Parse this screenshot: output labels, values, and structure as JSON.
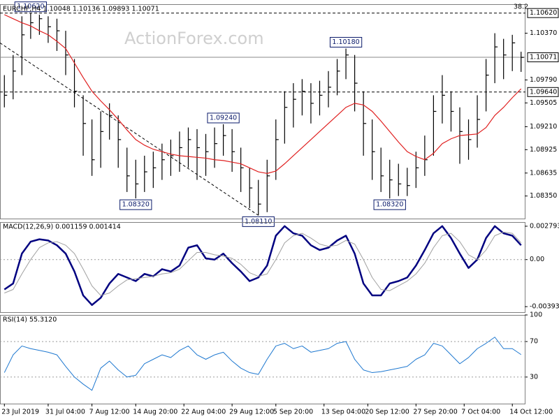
{
  "chart_data": [
    {
      "type": "ohlc",
      "title": "EURCHF,H4  1.10048 1.10136 1.09893 1.10071",
      "corner_label": "38.2",
      "watermark": "ActionForex.com",
      "color": "#000000",
      "xlim": [
        -0.5,
        59.5
      ],
      "ylim": [
        1.0807,
        1.1073
      ],
      "yticks": [
        {
          "value": 1.1037,
          "label": "1.10370"
        },
        {
          "value": 1.0979,
          "label": "1.09790"
        },
        {
          "value": 1.09505,
          "label": "1.09505"
        },
        {
          "value": 1.0921,
          "label": "1.09210"
        },
        {
          "value": 1.08925,
          "label": "1.08925"
        },
        {
          "value": 1.08635,
          "label": "1.08635"
        },
        {
          "value": 1.0835,
          "label": "1.08350"
        }
      ],
      "high": [
        1.0985,
        1.101,
        1.1058,
        1.1062,
        1.106,
        1.1058,
        1.1055,
        1.104,
        1.1005,
        1.096,
        1.093,
        1.094,
        1.095,
        1.0935,
        1.0895,
        1.088,
        1.0885,
        1.089,
        1.09,
        1.0905,
        1.0915,
        1.092,
        1.0918,
        1.0912,
        1.092,
        1.0924,
        1.0918,
        1.0895,
        1.087,
        1.0855,
        1.088,
        1.093,
        1.0965,
        1.0975,
        1.098,
        1.0975,
        1.0978,
        1.099,
        1.1005,
        1.1018,
        1.101,
        1.0965,
        1.093,
        1.0895,
        1.088,
        1.0875,
        1.087,
        1.089,
        1.091,
        1.096,
        1.0985,
        1.0965,
        1.0945,
        1.093,
        1.096,
        1.1005,
        1.1037,
        1.103,
        1.1035,
        1.1014
      ],
      "low": [
        1.0945,
        1.0955,
        1.0985,
        1.103,
        1.1035,
        1.1025,
        1.1015,
        1.0985,
        1.0945,
        1.0885,
        1.086,
        1.087,
        1.0905,
        1.087,
        1.084,
        1.0832,
        1.084,
        1.0845,
        1.0855,
        1.086,
        1.0865,
        1.087,
        1.0855,
        1.086,
        1.087,
        1.0885,
        1.0865,
        1.084,
        1.082,
        1.0811,
        1.0815,
        1.0855,
        1.09,
        1.092,
        1.0935,
        1.0925,
        1.0935,
        1.0945,
        1.096,
        1.098,
        1.094,
        1.0885,
        1.0855,
        1.084,
        1.0832,
        1.0835,
        1.0835,
        1.0845,
        1.086,
        1.0885,
        1.0925,
        1.0915,
        1.0875,
        1.088,
        1.0895,
        1.094,
        1.0975,
        1.098,
        1.099,
        1.0989
      ],
      "close": [
        1.096,
        1.099,
        1.1035,
        1.105,
        1.1055,
        1.1045,
        1.104,
        1.101,
        1.0965,
        1.0925,
        1.088,
        1.0915,
        1.0935,
        1.0905,
        1.086,
        1.085,
        1.0865,
        1.087,
        1.088,
        1.0885,
        1.0895,
        1.0905,
        1.0895,
        1.089,
        1.09,
        1.091,
        1.089,
        1.087,
        1.0845,
        1.0825,
        1.086,
        1.0905,
        1.0945,
        1.0955,
        1.0965,
        1.095,
        1.096,
        1.097,
        1.099,
        1.101,
        1.0975,
        1.0925,
        1.089,
        1.086,
        1.0855,
        1.085,
        1.0848,
        1.087,
        1.088,
        1.094,
        1.096,
        1.094,
        1.0915,
        1.0905,
        1.093,
        1.0985,
        1.102,
        1.101,
        1.1025,
        1.1007
      ],
      "ma": {
        "color": "#e02020",
        "values": [
          1.106,
          1.1055,
          1.105,
          1.1046,
          1.104,
          1.1035,
          1.1027,
          1.1018,
          1.1,
          1.0982,
          1.0965,
          1.0953,
          1.0942,
          1.093,
          1.0917,
          1.0905,
          1.0898,
          1.0893,
          1.089,
          1.0887,
          1.0885,
          1.0884,
          1.0883,
          1.0882,
          1.088,
          1.0879,
          1.0877,
          1.0875,
          1.087,
          1.0865,
          1.0863,
          1.0866,
          1.0875,
          1.0885,
          1.0895,
          1.0905,
          1.0915,
          1.0925,
          1.0935,
          1.0945,
          1.095,
          1.0948,
          1.094,
          1.0928,
          1.0915,
          1.0902,
          1.089,
          1.0884,
          1.088,
          1.0888,
          1.09,
          1.0906,
          1.091,
          1.0911,
          1.0912,
          1.092,
          1.0935,
          1.0945,
          1.0957,
          1.0968
        ]
      },
      "trendline": {
        "color": "#000000",
        "x": [
          -0.5,
          29
        ],
        "y": [
          1.1025,
          1.0811
        ]
      },
      "levels": [
        {
          "value": 1.1062,
          "label": "1.10620",
          "style": "dashed"
        },
        {
          "value": 1.10071,
          "label": "1.10071",
          "style": "solid"
        },
        {
          "value": 1.0964,
          "label": "1.09640",
          "style": "dashed"
        }
      ],
      "annotations": [
        {
          "x": 3,
          "value": 1.1062,
          "label": "1.10620"
        },
        {
          "x": 15,
          "value": 1.0832,
          "label": "1.08320"
        },
        {
          "x": 25,
          "value": 1.0924,
          "label": "1.09240"
        },
        {
          "x": 29,
          "value": 1.0811,
          "label": "1.08110"
        },
        {
          "x": 39,
          "value": 1.1018,
          "label": "1.10180"
        },
        {
          "x": 44,
          "value": 1.0832,
          "label": "1.08320"
        }
      ]
    },
    {
      "type": "line",
      "title": "MACD(12,26,9) 0.001159 0.001414",
      "xlim": [
        -0.5,
        59.5
      ],
      "ylim": [
        -0.0044,
        0.00314
      ],
      "yticks": [
        0.002793,
        {
          "value": 0,
          "label": "0.00"
        },
        -0.003938
      ],
      "grid_levels": [
        0
      ],
      "series": [
        {
          "color": "#000080",
          "width": 2.5,
          "values": [
            -0.0025,
            -0.002,
            0.0005,
            0.0015,
            0.0017,
            0.0016,
            0.0012,
            0.0005,
            -0.001,
            -0.003,
            -0.0038,
            -0.0032,
            -0.002,
            -0.0012,
            -0.0015,
            -0.0018,
            -0.0012,
            -0.0014,
            -0.0008,
            -0.001,
            -0.0005,
            0.001,
            0.0012,
            0.0001,
            0.0,
            0.0005,
            -0.0003,
            -0.001,
            -0.0018,
            -0.0015,
            -0.0005,
            0.002,
            0.0028,
            0.0022,
            0.002,
            0.0012,
            0.0008,
            0.001,
            0.0016,
            0.002,
            0.0005,
            -0.002,
            -0.003,
            -0.003,
            -0.002,
            -0.0018,
            -0.0015,
            -0.0005,
            0.0008,
            0.0022,
            0.0028,
            0.0018,
            0.0005,
            -0.0007,
            0.0,
            0.0018,
            0.0028,
            0.0022,
            0.002,
            0.0012
          ]
        },
        {
          "color": "#a0a0a0",
          "width": 1,
          "values": [
            -0.0028,
            -0.0025,
            -0.0012,
            0.0,
            0.001,
            0.0014,
            0.0015,
            0.0012,
            0.0005,
            -0.0008,
            -0.0022,
            -0.003,
            -0.0028,
            -0.0022,
            -0.0017,
            -0.0016,
            -0.0015,
            -0.0014,
            -0.0012,
            -0.0011,
            -0.0008,
            -0.0001,
            0.0006,
            0.0006,
            0.0004,
            0.0003,
            0.0001,
            -0.0004,
            -0.0011,
            -0.0014,
            -0.0012,
            0.0,
            0.0014,
            0.002,
            0.0022,
            0.0018,
            0.0013,
            0.0011,
            0.0012,
            0.0016,
            0.0013,
            0.0,
            -0.0015,
            -0.0025,
            -0.0026,
            -0.0022,
            -0.0018,
            -0.0012,
            -0.0003,
            0.001,
            0.002,
            0.0022,
            0.0015,
            0.0004,
            0.0,
            0.0008,
            0.002,
            0.0023,
            0.0022,
            0.0014
          ]
        }
      ]
    },
    {
      "type": "line",
      "title": "RSI(14) 55.3120",
      "xlim": [
        -0.5,
        59.5
      ],
      "ylim": [
        0,
        100
      ],
      "yticks": [
        100,
        70,
        30
      ],
      "grid_levels": [
        70,
        30
      ],
      "series": [
        {
          "color": "#1e78d0",
          "width": 1,
          "values": [
            35,
            55,
            65,
            62,
            60,
            58,
            55,
            42,
            30,
            22,
            15,
            40,
            48,
            38,
            30,
            32,
            45,
            50,
            55,
            52,
            60,
            65,
            55,
            50,
            55,
            58,
            48,
            40,
            35,
            33,
            50,
            65,
            68,
            62,
            65,
            58,
            60,
            62,
            68,
            70,
            50,
            38,
            35,
            36,
            38,
            40,
            42,
            50,
            55,
            68,
            65,
            55,
            45,
            52,
            62,
            68,
            75,
            62,
            62,
            55.312
          ]
        }
      ],
      "xticks": [
        {
          "value": 0,
          "label": "23 Jul 2019"
        },
        {
          "value": 5,
          "label": "31 Jul 04:00"
        },
        {
          "value": 10,
          "label": "7 Aug 12:00"
        },
        {
          "value": 15,
          "label": "14 Aug 20:00"
        },
        {
          "value": 20.5,
          "label": "22 Aug 04:00"
        },
        {
          "value": 26,
          "label": "29 Aug 12:00"
        },
        {
          "value": 31,
          "label": "5 Sep 20:00"
        },
        {
          "value": 36.5,
          "label": "13 Sep 04:00"
        },
        {
          "value": 41.5,
          "label": "20 Sep 12:00"
        },
        {
          "value": 47,
          "label": "27 Sep 20:00"
        },
        {
          "value": 52.5,
          "label": "7 Oct 04:00"
        },
        {
          "value": 58,
          "label": "14 Oct 12:00"
        }
      ]
    }
  ]
}
